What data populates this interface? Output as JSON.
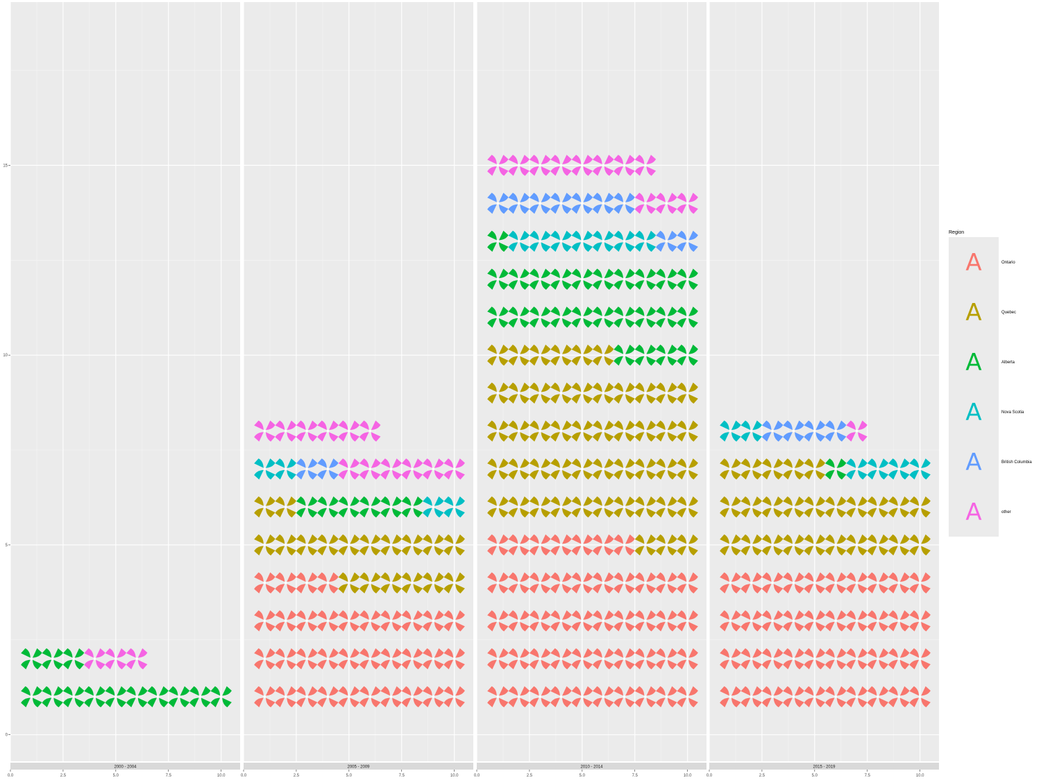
{
  "chart_data": {
    "type": "faceted waffle pictogram",
    "title": "",
    "xlabel": "",
    "ylabel": "",
    "x_ticks": [
      "0.0",
      "2.5",
      "5.0",
      "7.5",
      "10.0"
    ],
    "y_ticks": [
      "0",
      "5",
      "10",
      "15"
    ],
    "xlim": [
      0,
      10.9
    ],
    "ylim": [
      -0.7,
      19.3
    ],
    "grid": "on",
    "icon": "pinwheel",
    "legend": {
      "title": "Region",
      "placement": "right",
      "key_glyph": "A",
      "entries": [
        {
          "name": "Ontario",
          "color": "#F8766D"
        },
        {
          "name": "Quebec",
          "color": "#B79F00"
        },
        {
          "name": "Alberta",
          "color": "#00BA38"
        },
        {
          "name": "Nova Scotia",
          "color": "#00BFC4"
        },
        {
          "name": "British Columbia",
          "color": "#619CFF"
        },
        {
          "name": "other",
          "color": "#F564E3"
        }
      ]
    },
    "facets": [
      {
        "label": "2000 - 2004",
        "counts": {
          "Ontario": 0,
          "Quebec": 0,
          "Alberta": 13,
          "Nova Scotia": 0,
          "British Columbia": 0,
          "other": 3
        }
      },
      {
        "label": "2005 - 2009",
        "counts": {
          "Ontario": 34,
          "Quebec": 18,
          "Alberta": 6,
          "Nova Scotia": 4,
          "British Columbia": 2,
          "other": 12
        }
      },
      {
        "label": "2010 - 2014",
        "counts": {
          "Ontario": 47,
          "Quebec": 49,
          "Alberta": 25,
          "Nova Scotia": 7,
          "British Columbia": 9,
          "other": 11
        }
      },
      {
        "label": "2015 - 2019",
        "counts": {
          "Ontario": 40,
          "Quebec": 25,
          "Alberta": 1,
          "Nova Scotia": 6,
          "British Columbia": 4,
          "other": 1
        }
      }
    ]
  }
}
